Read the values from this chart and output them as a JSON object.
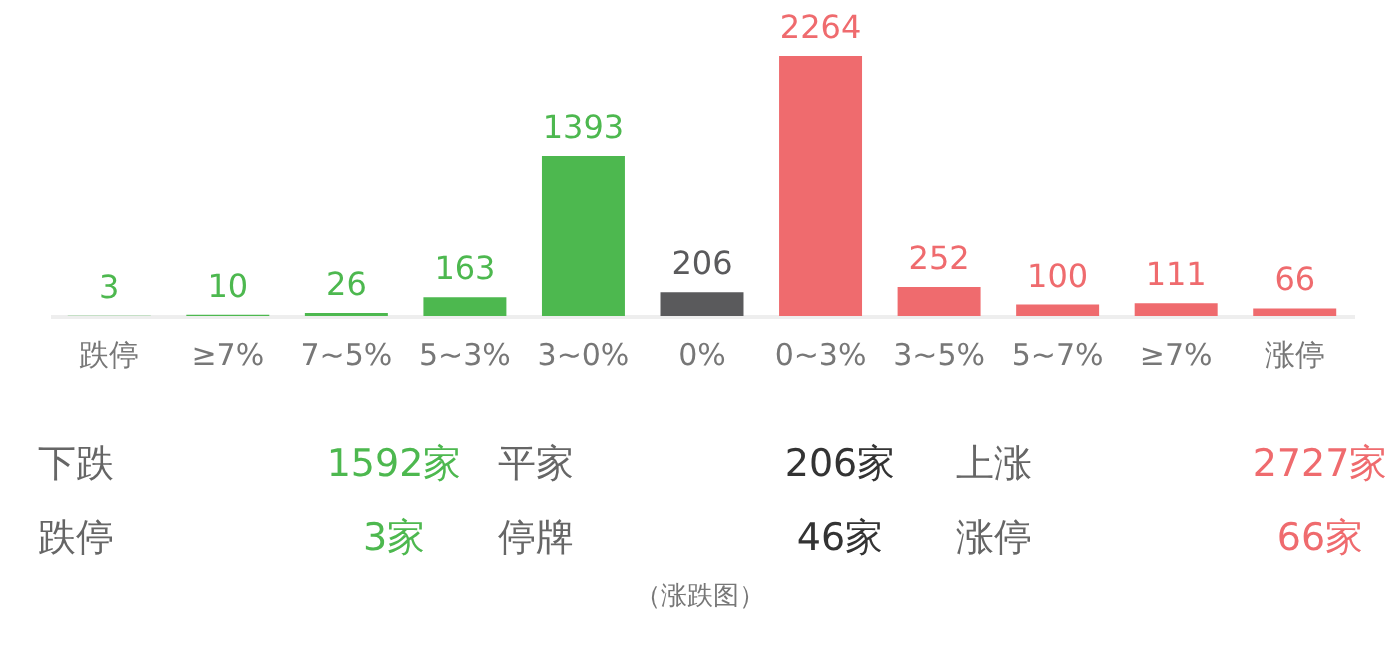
{
  "chart_data": [
    {
      "type": "bar",
      "categories": [
        "跌停",
        "≥7%",
        "7~5%",
        "5~3%",
        "3~0%",
        "0%",
        "0~3%",
        "3~5%",
        "5~7%",
        "≥7%",
        "涨停"
      ],
      "values": [
        3,
        10,
        26,
        163,
        1393,
        206,
        2264,
        252,
        100,
        111,
        66
      ],
      "colors": [
        "#4db84f",
        "#4db84f",
        "#4db84f",
        "#4db84f",
        "#4db84f",
        "#5a5a5c",
        "#ef6b6e",
        "#ef6b6e",
        "#ef6b6e",
        "#ef6b6e",
        "#ef6b6e"
      ],
      "data_labels": true
    },
    {
      "type": "other",
      "annotations": [
        "下跌",
        "1592家",
        "平家",
        "206家",
        "上涨",
        "2727家",
        "跌停",
        "3家",
        "停牌",
        "46家",
        "涨停",
        "66家",
        "（涨跌图）"
      ]
    }
  ]
}
